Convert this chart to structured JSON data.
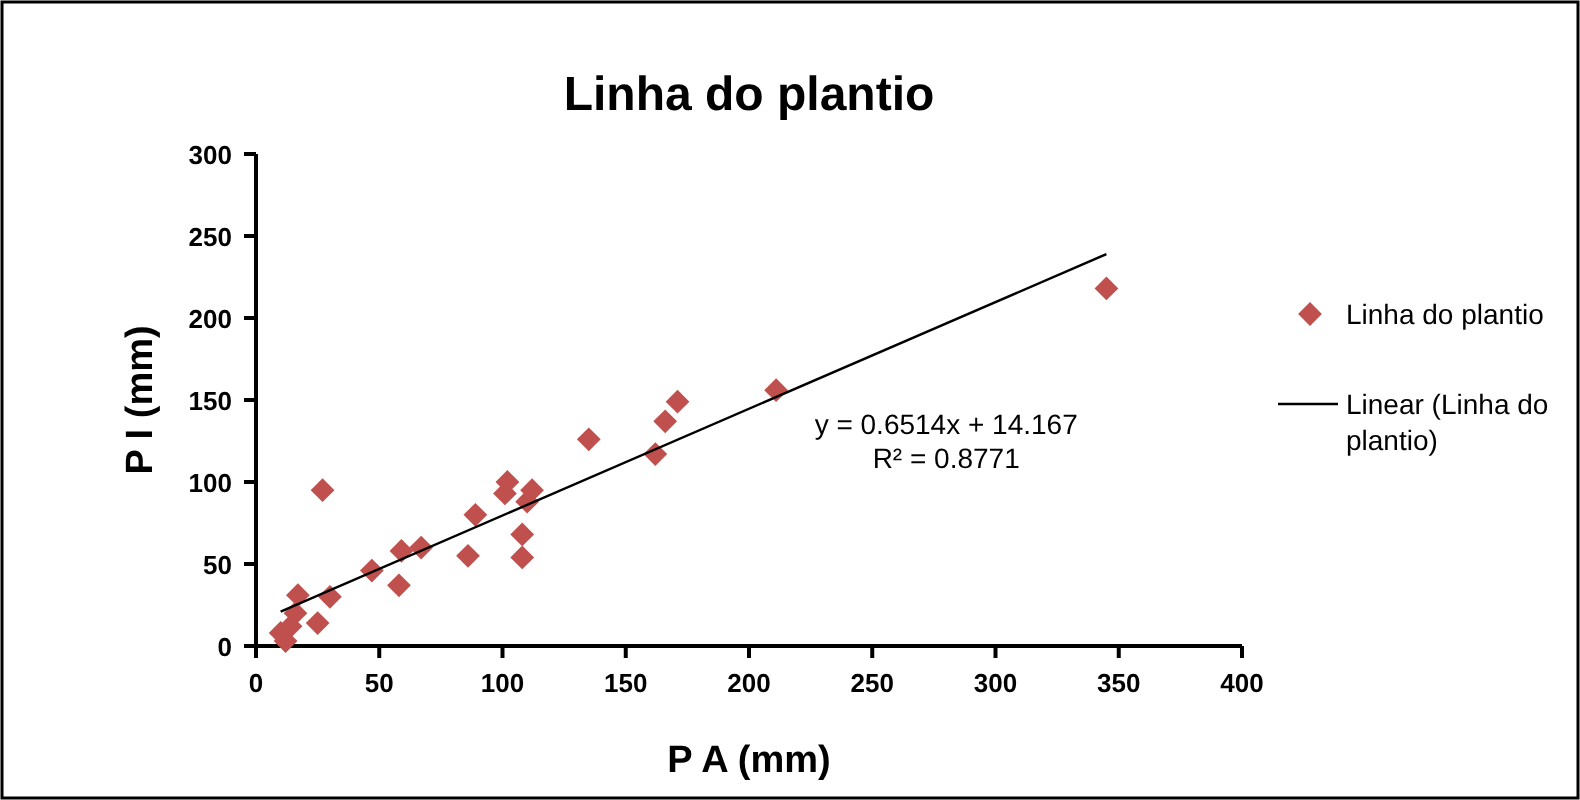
{
  "chart_data": {
    "type": "scatter",
    "title": "Linha do plantio",
    "xlabel": "P A (mm)",
    "ylabel": "P I (mm)",
    "xlim": [
      0,
      400
    ],
    "xticks": [
      0,
      50,
      100,
      150,
      200,
      250,
      300,
      350,
      400
    ],
    "ylim": [
      0,
      300
    ],
    "yticks": [
      0,
      50,
      100,
      150,
      200,
      250,
      300
    ],
    "grid": false,
    "legend": "right",
    "marker": "diamond",
    "series": [
      {
        "name": "Linha do plantio",
        "color": "#c0504d",
        "x": [
          10,
          12,
          14,
          16,
          17,
          25,
          27,
          30,
          47,
          58,
          59,
          67,
          86,
          89,
          101,
          102,
          108,
          108,
          110,
          112,
          135,
          162,
          166,
          171,
          211,
          345
        ],
        "values": [
          8,
          3,
          12,
          20,
          31,
          14,
          95,
          30,
          46,
          37,
          58,
          60,
          55,
          80,
          93,
          100,
          68,
          54,
          88,
          95,
          126,
          117,
          137,
          149,
          156,
          218
        ]
      },
      {
        "name": "Linear (Linha do plantio)",
        "type": "line",
        "color": "#000000",
        "marker": "none",
        "line_style": "solid",
        "x": [
          10,
          345
        ],
        "values": [
          21,
          239
        ]
      }
    ],
    "annotations": [
      "y = 0.6514x + 14.167",
      "R² = 0.8771"
    ]
  }
}
